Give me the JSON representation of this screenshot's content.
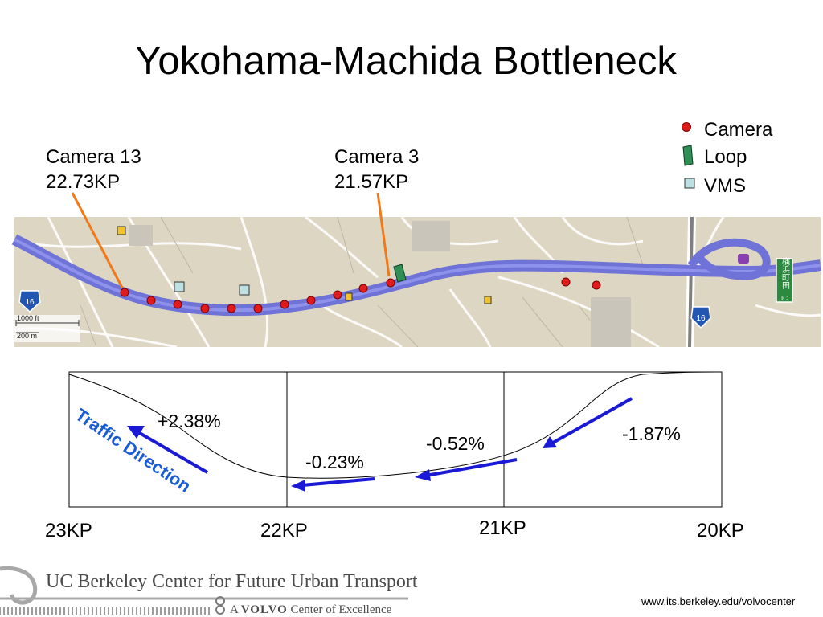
{
  "title": "Yokohama-Machida Bottleneck",
  "callouts": {
    "camera13_name": "Camera 13",
    "camera13_kp": "22.73KP",
    "camera3_name": "Camera 3",
    "camera3_kp": "21.57KP"
  },
  "legend": {
    "camera": "Camera",
    "loop": "Loop",
    "vms": "VMS"
  },
  "map": {
    "scale_ft": "1000 ft",
    "scale_m": "200 m",
    "route_shield_left": "16",
    "route_shield_right": "16",
    "ic_sign": "横浜町田",
    "ic_sub": "IC"
  },
  "profile": {
    "direction_label": "Traffic Direction",
    "grades": [
      "+2.38%",
      "-0.23%",
      "-0.52%",
      "-1.87%"
    ],
    "kp_labels": [
      "23KP",
      "22KP",
      "21KP",
      "20KP"
    ]
  },
  "footer": {
    "logo_line1": "UC Berkeley Center for Future Urban Transport",
    "logo_line2_pre": "A",
    "logo_line2_brand": "VOLVO",
    "logo_line2_post": "Center of Excellence",
    "url": "www.its.berkeley.edu/volvocenter"
  },
  "colors": {
    "highway": "#6f72d6",
    "camera": "#e11b1b",
    "loop": "#2f8f55",
    "vms": "#bde0e3",
    "arrow": "#1a1ad6",
    "direction_text": "#1a5cd6",
    "callout_line": "#f07a1a",
    "map_bg": "#ddd6c2"
  }
}
